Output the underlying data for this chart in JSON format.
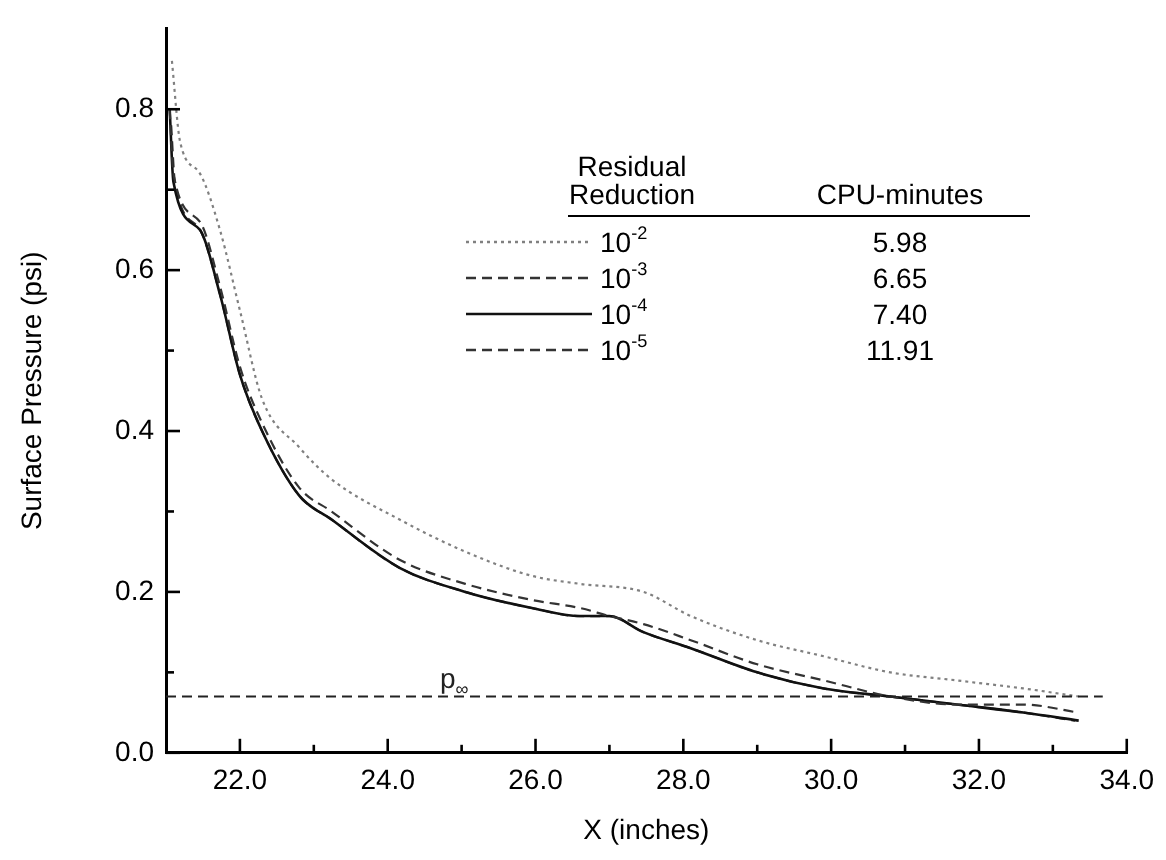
{
  "chart_data": {
    "type": "line",
    "xlabel": "X (inches)",
    "ylabel": "Surface Pressure (psi)",
    "legend_title": "Residual Reduction",
    "legend": "top left",
    "grid": false,
    "marker": "none",
    "xlim": [
      21,
      34
    ],
    "ylim": [
      0,
      0.9
    ],
    "xticks": [
      {
        "value": 22,
        "label": "22.0"
      },
      {
        "value": 23,
        "label": null
      },
      {
        "value": 24,
        "label": "24.0"
      },
      {
        "value": 25,
        "label": null
      },
      {
        "value": 26,
        "label": "26.0"
      },
      {
        "value": 27,
        "label": null
      },
      {
        "value": 28,
        "label": "28.0"
      },
      {
        "value": 29,
        "label": null
      },
      {
        "value": 30,
        "label": "30.0"
      },
      {
        "value": 31,
        "label": null
      },
      {
        "value": 32,
        "label": "32.0"
      },
      {
        "value": 33,
        "label": null
      },
      {
        "value": 34,
        "label": "34.0"
      }
    ],
    "yticks": [
      {
        "value": 0,
        "label": "0.0"
      },
      {
        "value": 0.1,
        "label": null
      },
      0.2,
      {
        "value": 0.3,
        "label": null
      },
      0.4,
      {
        "value": 0.5,
        "label": null
      },
      0.6,
      {
        "value": 0.7,
        "label": null
      },
      0.8
    ],
    "series": [
      {
        "name": "10$^{-2}$",
        "color": "#808080",
        "line_style": "dotted",
        "x": [
          21.08,
          21.19,
          21.46,
          21.73,
          22.0,
          22.3,
          22.8,
          23.24,
          24.16,
          25.05,
          25.95,
          26.6,
          27.46,
          28.1,
          29.0,
          29.9,
          30.8,
          31.7,
          32.6,
          33.35
        ],
        "values": [
          0.86,
          0.76,
          0.72,
          0.65,
          0.55,
          0.44,
          0.38,
          0.34,
          0.29,
          0.25,
          0.22,
          0.21,
          0.2,
          0.17,
          0.14,
          0.12,
          0.1,
          0.09,
          0.08,
          0.07
        ]
      },
      {
        "name": "10$^{-3}$",
        "color": "#333333",
        "line_style": "dashed",
        "x": [
          21.05,
          21.1,
          21.46,
          21.73,
          22.0,
          22.3,
          22.8,
          23.24,
          24.16,
          25.05,
          25.95,
          26.6,
          27.0,
          27.46,
          28.1,
          29.0,
          29.9,
          30.8,
          31.7,
          32.6,
          33.35
        ],
        "values": [
          0.8,
          0.72,
          0.66,
          0.58,
          0.48,
          0.41,
          0.33,
          0.3,
          0.24,
          0.21,
          0.19,
          0.18,
          0.17,
          0.16,
          0.14,
          0.11,
          0.09,
          0.07,
          0.06,
          0.06,
          0.05
        ]
      },
      {
        "name": "10$^{-4}$",
        "color": "#111111",
        "line_style": "solid",
        "x": [
          21.05,
          21.1,
          21.46,
          21.73,
          22.0,
          22.3,
          22.8,
          23.24,
          24.16,
          25.05,
          25.95,
          26.6,
          27.0,
          27.46,
          28.1,
          29.0,
          29.9,
          30.8,
          31.7,
          32.6,
          33.35
        ],
        "values": [
          0.8,
          0.71,
          0.65,
          0.57,
          0.47,
          0.4,
          0.32,
          0.29,
          0.23,
          0.2,
          0.18,
          0.17,
          0.17,
          0.15,
          0.13,
          0.1,
          0.08,
          0.07,
          0.06,
          0.05,
          0.04
        ]
      },
      {
        "name": "10$^{-5}$",
        "color": "#333333",
        "line_style": "dashed",
        "x": [
          21.07,
          21.12,
          21.46,
          21.73,
          22.0,
          22.3,
          22.8,
          23.24,
          24.16,
          25.05,
          25.95,
          26.6,
          27.0,
          27.46,
          28.1,
          29.0,
          29.9,
          30.8,
          31.7,
          32.6,
          33.3
        ],
        "values": [
          0.78,
          0.71,
          0.65,
          0.57,
          0.47,
          0.4,
          0.32,
          0.29,
          0.23,
          0.2,
          0.18,
          0.17,
          0.17,
          0.15,
          0.13,
          0.1,
          0.08,
          0.07,
          0.06,
          0.05,
          0.04
        ]
      }
    ],
    "ref_lines": [
      {
        "axis": "y",
        "value": 0.07,
        "label": "p$_{∞}$",
        "color": "#222222",
        "line_style": "dashed"
      }
    ],
    "annotations": [
      "CPU-minutes",
      "5.98",
      "6.65",
      "7.40",
      "11.91"
    ]
  }
}
